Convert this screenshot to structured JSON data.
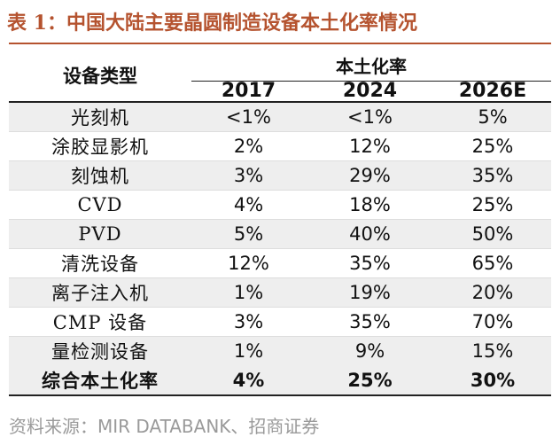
{
  "title": "表 1：中国大陆主要晶圆制造设备本土化率情况",
  "header": {
    "type_col": "设备类型",
    "group": "本土化率",
    "years": [
      "2017",
      "2024",
      "2026E"
    ]
  },
  "rows": [
    {
      "name": "光刻机",
      "values": [
        "<1%",
        "<1%",
        "5%"
      ]
    },
    {
      "name": "涂胶显影机",
      "values": [
        "2%",
        "12%",
        "25%"
      ]
    },
    {
      "name": "刻蚀机",
      "values": [
        "3%",
        "29%",
        "35%"
      ]
    },
    {
      "name": "CVD",
      "values": [
        "4%",
        "18%",
        "25%"
      ]
    },
    {
      "name": "PVD",
      "values": [
        "5%",
        "40%",
        "50%"
      ]
    },
    {
      "name": "清洗设备",
      "values": [
        "12%",
        "35%",
        "65%"
      ]
    },
    {
      "name": "离子注入机",
      "values": [
        "1%",
        "19%",
        "20%"
      ]
    },
    {
      "name": "CMP 设备",
      "values": [
        "3%",
        "35%",
        "70%"
      ]
    },
    {
      "name": "量检测设备",
      "values": [
        "1%",
        "9%",
        "15%"
      ]
    }
  ],
  "summary": {
    "name": "综合本土化率",
    "values": [
      "4%",
      "25%",
      "30%"
    ]
  },
  "source": "资料来源：MIR DATABANK、招商证券",
  "colors": {
    "accent": "#b5532f",
    "stripe": "#eeeeee",
    "source_text": "#9a9a9a"
  }
}
